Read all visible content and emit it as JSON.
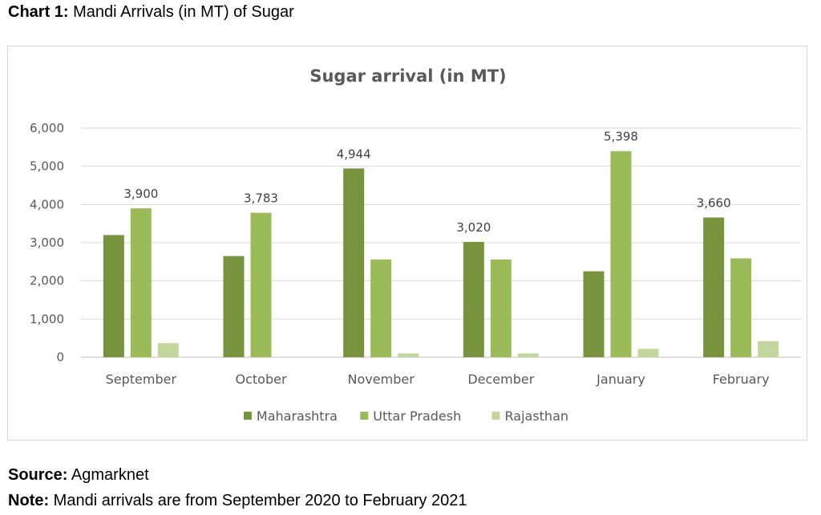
{
  "caption": {
    "prefix": "Chart 1:",
    "text": "Mandi Arrivals (in MT) of Sugar"
  },
  "source": {
    "label": "Source:",
    "text": "Agmarknet"
  },
  "note": {
    "label": "Note:",
    "text": "Mandi arrivals are from September 2020 to February 2021"
  },
  "chart_data": {
    "type": "bar",
    "title": "Sugar arrival (in MT)",
    "categories": [
      "September",
      "October",
      "November",
      "December",
      "January",
      "February"
    ],
    "series": [
      {
        "name": "Maharashtra",
        "color": "#77933c",
        "values": [
          3200,
          2650,
          4944,
          3020,
          2250,
          3660
        ]
      },
      {
        "name": "Uttar Pradesh",
        "color": "#9bbb59",
        "values": [
          3900,
          3783,
          2560,
          2560,
          5398,
          2590
        ]
      },
      {
        "name": "Rajasthan",
        "color": "#c3d69b",
        "values": [
          370,
          0,
          100,
          100,
          220,
          420
        ]
      }
    ],
    "data_labels": [
      {
        "series": 1,
        "category": 0,
        "text": "3,900"
      },
      {
        "series": 1,
        "category": 1,
        "text": "3,783"
      },
      {
        "series": 0,
        "category": 2,
        "text": "4,944"
      },
      {
        "series": 0,
        "category": 3,
        "text": "3,020"
      },
      {
        "series": 1,
        "category": 4,
        "text": "5,398"
      },
      {
        "series": 0,
        "category": 5,
        "text": "3,660"
      }
    ],
    "yticks": [
      "0",
      "1,000",
      "2,000",
      "3,000",
      "4,000",
      "5,000",
      "6,000"
    ],
    "ylim": [
      0,
      6000
    ],
    "grid": true,
    "legend": "bottom"
  }
}
